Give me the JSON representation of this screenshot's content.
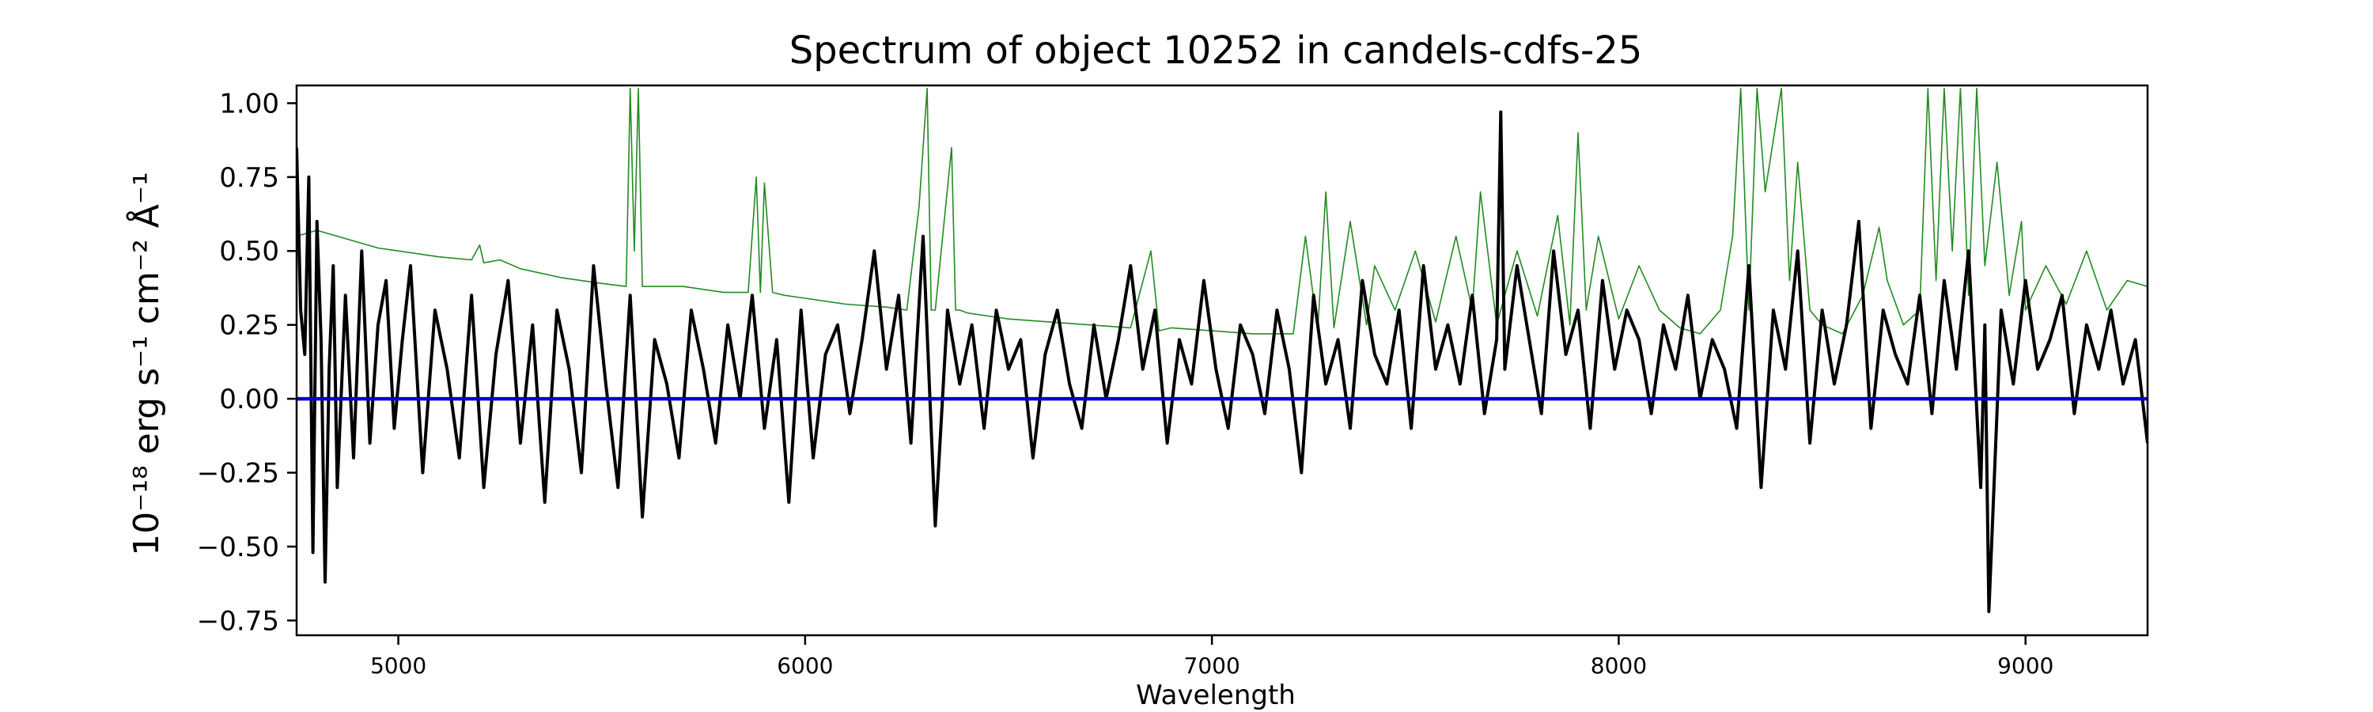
{
  "chart_data": {
    "type": "line",
    "title": "Spectrum of object 10252 in candels-cdfs-25",
    "xlabel": "Wavelength",
    "ylabel": "10⁻¹⁸ erg s⁻¹ cm⁻² Å⁻¹",
    "xlim": [
      4750,
      9300
    ],
    "ylim": [
      -0.8,
      1.06
    ],
    "x_ticks": [
      5000,
      6000,
      7000,
      8000,
      9000
    ],
    "y_ticks": [
      -0.75,
      -0.5,
      -0.25,
      0.0,
      0.25,
      0.5,
      0.75,
      1.0
    ],
    "y_tick_labels": [
      "−0.75",
      "−0.50",
      "−0.25",
      "0.00",
      "0.25",
      "0.50",
      "0.75",
      "1.00"
    ],
    "grid": false,
    "legend": "none",
    "series": [
      {
        "role": "noise",
        "color": "#228b22",
        "x": [
          4750,
          4775,
          4800,
          4850,
          4900,
          4950,
          5000,
          5100,
          5180,
          5200,
          5210,
          5250,
          5300,
          5400,
          5500,
          5560,
          5570,
          5580,
          5590,
          5600,
          5700,
          5800,
          5860,
          5880,
          5890,
          5900,
          5920,
          5950,
          6000,
          6100,
          6200,
          6250,
          6280,
          6300,
          6310,
          6320,
          6360,
          6370,
          6380,
          6400,
          6450,
          6500,
          6600,
          6700,
          6800,
          6850,
          6870,
          6900,
          7000,
          7100,
          7200,
          7230,
          7260,
          7280,
          7300,
          7340,
          7380,
          7400,
          7450,
          7500,
          7550,
          7600,
          7640,
          7660,
          7700,
          7750,
          7800,
          7850,
          7880,
          7900,
          7920,
          7950,
          8000,
          8050,
          8100,
          8150,
          8200,
          8250,
          8280,
          8300,
          8320,
          8340,
          8360,
          8400,
          8420,
          8440,
          8470,
          8500,
          8550,
          8600,
          8640,
          8660,
          8700,
          8740,
          8760,
          8780,
          8800,
          8820,
          8840,
          8860,
          8880,
          8900,
          8930,
          8960,
          8990,
          9000,
          9050,
          9100,
          9150,
          9200,
          9250,
          9300
        ],
        "y": [
          0.55,
          0.56,
          0.57,
          0.55,
          0.53,
          0.51,
          0.5,
          0.48,
          0.47,
          0.52,
          0.46,
          0.47,
          0.44,
          0.41,
          0.39,
          0.38,
          1.05,
          0.5,
          1.05,
          0.38,
          0.38,
          0.36,
          0.36,
          0.75,
          0.36,
          0.73,
          0.36,
          0.35,
          0.34,
          0.32,
          0.31,
          0.3,
          0.65,
          1.05,
          0.3,
          0.3,
          0.85,
          0.3,
          0.3,
          0.29,
          0.28,
          0.27,
          0.26,
          0.25,
          0.24,
          0.5,
          0.23,
          0.24,
          0.23,
          0.22,
          0.22,
          0.55,
          0.23,
          0.7,
          0.24,
          0.6,
          0.25,
          0.45,
          0.3,
          0.5,
          0.26,
          0.55,
          0.3,
          0.7,
          0.25,
          0.5,
          0.28,
          0.62,
          0.25,
          0.9,
          0.3,
          0.55,
          0.27,
          0.45,
          0.3,
          0.24,
          0.22,
          0.3,
          0.55,
          1.05,
          0.3,
          1.05,
          0.7,
          1.05,
          0.4,
          0.8,
          0.3,
          0.25,
          0.22,
          0.35,
          0.58,
          0.4,
          0.25,
          0.3,
          1.05,
          0.4,
          1.05,
          0.5,
          1.05,
          0.35,
          1.05,
          0.45,
          0.8,
          0.35,
          0.6,
          0.3,
          0.45,
          0.32,
          0.5,
          0.3,
          0.4,
          0.38
        ]
      },
      {
        "role": "flux",
        "color": "#000000",
        "x": [
          4750,
          4760,
          4770,
          4780,
          4790,
          4800,
          4810,
          4820,
          4830,
          4840,
          4850,
          4870,
          4890,
          4910,
          4930,
          4950,
          4970,
          4990,
          5010,
          5030,
          5060,
          5090,
          5120,
          5150,
          5180,
          5210,
          5240,
          5270,
          5300,
          5330,
          5360,
          5390,
          5420,
          5450,
          5480,
          5510,
          5540,
          5570,
          5600,
          5630,
          5660,
          5690,
          5720,
          5750,
          5780,
          5810,
          5840,
          5870,
          5900,
          5930,
          5960,
          5990,
          6020,
          6050,
          6080,
          6110,
          6140,
          6170,
          6200,
          6230,
          6260,
          6290,
          6320,
          6350,
          6380,
          6410,
          6440,
          6470,
          6500,
          6530,
          6560,
          6590,
          6620,
          6650,
          6680,
          6710,
          6740,
          6770,
          6800,
          6830,
          6860,
          6890,
          6920,
          6950,
          6980,
          7010,
          7040,
          7070,
          7100,
          7130,
          7160,
          7190,
          7220,
          7250,
          7280,
          7310,
          7340,
          7370,
          7400,
          7430,
          7460,
          7490,
          7520,
          7550,
          7580,
          7610,
          7640,
          7670,
          7700,
          7710,
          7720,
          7750,
          7780,
          7810,
          7840,
          7870,
          7900,
          7930,
          7960,
          7990,
          8020,
          8050,
          8080,
          8110,
          8140,
          8170,
          8200,
          8230,
          8260,
          8290,
          8320,
          8350,
          8380,
          8410,
          8440,
          8470,
          8500,
          8530,
          8560,
          8590,
          8620,
          8650,
          8680,
          8710,
          8740,
          8770,
          8800,
          8830,
          8860,
          8890,
          8900,
          8910,
          8940,
          8970,
          9000,
          9030,
          9060,
          9090,
          9120,
          9150,
          9180,
          9210,
          9240,
          9270,
          9300
        ],
        "y": [
          0.85,
          0.3,
          0.15,
          0.75,
          -0.52,
          0.6,
          0.2,
          -0.62,
          0.1,
          0.45,
          -0.3,
          0.35,
          -0.2,
          0.5,
          -0.15,
          0.25,
          0.4,
          -0.1,
          0.2,
          0.45,
          -0.25,
          0.3,
          0.1,
          -0.2,
          0.35,
          -0.3,
          0.15,
          0.4,
          -0.15,
          0.25,
          -0.35,
          0.3,
          0.1,
          -0.25,
          0.45,
          0.05,
          -0.3,
          0.35,
          -0.4,
          0.2,
          0.05,
          -0.2,
          0.3,
          0.1,
          -0.15,
          0.25,
          0.0,
          0.35,
          -0.1,
          0.2,
          -0.35,
          0.3,
          -0.2,
          0.15,
          0.25,
          -0.05,
          0.2,
          0.5,
          0.1,
          0.35,
          -0.15,
          0.55,
          -0.43,
          0.3,
          0.05,
          0.25,
          -0.1,
          0.3,
          0.1,
          0.2,
          -0.2,
          0.15,
          0.3,
          0.05,
          -0.1,
          0.25,
          0.0,
          0.2,
          0.45,
          0.1,
          0.3,
          -0.15,
          0.2,
          0.05,
          0.4,
          0.1,
          -0.1,
          0.25,
          0.15,
          -0.05,
          0.3,
          0.1,
          -0.25,
          0.35,
          0.05,
          0.2,
          -0.1,
          0.4,
          0.15,
          0.05,
          0.3,
          -0.1,
          0.45,
          0.1,
          0.25,
          0.05,
          0.35,
          -0.05,
          0.2,
          0.97,
          0.1,
          0.45,
          0.2,
          -0.05,
          0.5,
          0.15,
          0.3,
          -0.1,
          0.4,
          0.1,
          0.3,
          0.2,
          -0.05,
          0.25,
          0.1,
          0.35,
          0.0,
          0.2,
          0.1,
          -0.1,
          0.45,
          -0.3,
          0.3,
          0.1,
          0.5,
          -0.15,
          0.3,
          0.05,
          0.25,
          0.6,
          -0.1,
          0.3,
          0.15,
          0.05,
          0.35,
          -0.05,
          0.4,
          0.1,
          0.5,
          -0.3,
          0.25,
          -0.72,
          0.3,
          0.05,
          0.4,
          0.1,
          0.2,
          0.35,
          -0.05,
          0.25,
          0.1,
          0.3,
          0.05,
          0.2,
          -0.15
        ]
      },
      {
        "role": "zero-line",
        "color": "#0000cc",
        "x": [
          4750,
          9300
        ],
        "y": [
          0.0,
          0.0
        ]
      }
    ]
  }
}
